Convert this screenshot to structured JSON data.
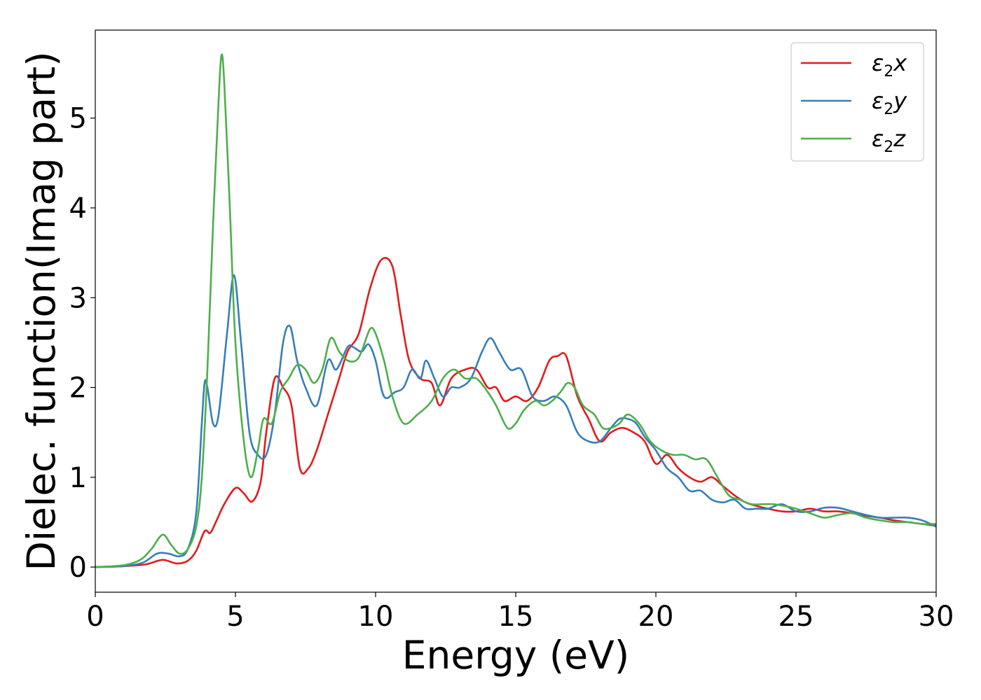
{
  "chart_data": {
    "type": "line",
    "xlabel": "Energy (eV)",
    "ylabel": "Dielec. function(Imag part)",
    "xlim": [
      0,
      30
    ],
    "ylim": [
      -0.28,
      5.98
    ],
    "xticks": [
      0,
      5,
      10,
      15,
      20,
      25,
      30
    ],
    "yticks": [
      0,
      1,
      2,
      3,
      4,
      5
    ],
    "xtick_labels": [
      "0",
      "5",
      "10",
      "15",
      "20",
      "25",
      "30"
    ],
    "ytick_labels": [
      "0",
      "1",
      "2",
      "3",
      "4",
      "5"
    ],
    "legend_position": "top-right",
    "grid": false,
    "series": [
      {
        "name": "ε₂x",
        "legend_base": "ε",
        "legend_sub": "2",
        "legend_suffix": "x",
        "color": "#e41a1c",
        "x": [
          0,
          1,
          1.8,
          2.4,
          2.9,
          3.3,
          3.6,
          3.9,
          4.1,
          4.3,
          4.6,
          5.0,
          5.3,
          5.6,
          5.9,
          6.1,
          6.4,
          6.7,
          7.0,
          7.3,
          7.6,
          7.9,
          8.3,
          8.7,
          9.0,
          9.4,
          9.8,
          10.2,
          10.6,
          10.9,
          11.2,
          11.6,
          12.0,
          12.3,
          12.7,
          13.2,
          13.6,
          14.0,
          14.3,
          14.6,
          15.0,
          15.4,
          15.8,
          16.2,
          16.5,
          16.8,
          17.2,
          17.6,
          18.0,
          18.4,
          18.8,
          19.2,
          19.6,
          20.0,
          20.4,
          20.8,
          21.2,
          21.6,
          22.0,
          22.4,
          22.8,
          23.2,
          23.6,
          24.0,
          24.5,
          25.0,
          25.5,
          26.0,
          26.5,
          27.0,
          27.5,
          28.0,
          28.5,
          29.0,
          29.5,
          30.0
        ],
        "values": [
          0,
          0.01,
          0.03,
          0.08,
          0.04,
          0.07,
          0.18,
          0.4,
          0.38,
          0.5,
          0.7,
          0.88,
          0.82,
          0.73,
          0.95,
          1.5,
          2.1,
          2.0,
          1.8,
          1.1,
          1.1,
          1.3,
          1.7,
          2.1,
          2.4,
          2.6,
          3.1,
          3.42,
          3.35,
          2.8,
          2.3,
          2.1,
          2.05,
          1.8,
          2.1,
          2.2,
          2.2,
          2.0,
          2.0,
          1.85,
          1.9,
          1.85,
          2.0,
          2.3,
          2.35,
          2.35,
          1.9,
          1.65,
          1.4,
          1.5,
          1.55,
          1.5,
          1.4,
          1.15,
          1.25,
          1.1,
          1.0,
          0.95,
          1.0,
          0.9,
          0.8,
          0.72,
          0.68,
          0.65,
          0.62,
          0.62,
          0.65,
          0.62,
          0.62,
          0.6,
          0.57,
          0.55,
          0.52,
          0.5,
          0.48,
          0.46
        ]
      },
      {
        "name": "ε₂y",
        "legend_base": "ε",
        "legend_sub": "2",
        "legend_suffix": "y",
        "color": "#377eb8",
        "x": [
          0,
          1,
          1.7,
          2.2,
          2.6,
          3.0,
          3.3,
          3.6,
          3.8,
          3.9,
          4.0,
          4.2,
          4.4,
          4.7,
          4.95,
          5.2,
          5.5,
          5.8,
          6.1,
          6.4,
          6.7,
          6.95,
          7.2,
          7.5,
          7.9,
          8.3,
          8.6,
          9.0,
          9.2,
          9.5,
          9.75,
          10.0,
          10.3,
          10.7,
          11.0,
          11.3,
          11.6,
          11.8,
          12.1,
          12.4,
          12.7,
          13.0,
          13.4,
          13.8,
          14.1,
          14.4,
          14.8,
          15.2,
          15.6,
          16.0,
          16.4,
          16.8,
          17.2,
          17.6,
          18.0,
          18.4,
          18.7,
          19.0,
          19.3,
          19.6,
          20.0,
          20.4,
          20.8,
          21.2,
          21.6,
          22.0,
          22.4,
          22.8,
          23.2,
          23.6,
          24.0,
          24.5,
          25.0,
          25.5,
          26.0,
          26.5,
          27.0,
          27.5,
          28.0,
          28.5,
          29.0,
          29.5,
          30.0
        ],
        "values": [
          0,
          0.01,
          0.05,
          0.15,
          0.15,
          0.12,
          0.2,
          0.6,
          1.6,
          2.05,
          2.0,
          1.6,
          1.7,
          2.6,
          3.25,
          2.5,
          1.5,
          1.25,
          1.25,
          1.7,
          2.5,
          2.68,
          2.3,
          2.0,
          1.8,
          2.3,
          2.2,
          2.45,
          2.45,
          2.4,
          2.48,
          2.3,
          1.9,
          1.95,
          2.0,
          2.2,
          2.1,
          2.3,
          2.1,
          1.9,
          2.0,
          2.0,
          2.1,
          2.4,
          2.55,
          2.4,
          2.2,
          2.2,
          1.9,
          1.85,
          1.9,
          1.8,
          1.5,
          1.4,
          1.4,
          1.55,
          1.65,
          1.65,
          1.6,
          1.45,
          1.3,
          1.1,
          1.0,
          0.85,
          0.85,
          0.75,
          0.72,
          0.75,
          0.65,
          0.65,
          0.65,
          0.7,
          0.62,
          0.62,
          0.66,
          0.66,
          0.62,
          0.58,
          0.55,
          0.55,
          0.55,
          0.52,
          0.45
        ]
      },
      {
        "name": "ε₂z",
        "legend_base": "ε",
        "legend_sub": "2",
        "legend_suffix": "z",
        "color": "#4daf4a",
        "x": [
          0,
          1,
          1.6,
          2.0,
          2.4,
          2.7,
          3.0,
          3.3,
          3.6,
          3.8,
          4.0,
          4.2,
          4.4,
          4.5,
          4.6,
          4.8,
          5.0,
          5.3,
          5.55,
          5.8,
          6.0,
          6.3,
          6.6,
          6.9,
          7.2,
          7.5,
          7.8,
          8.1,
          8.4,
          8.7,
          9.0,
          9.3,
          9.5,
          9.8,
          10.0,
          10.3,
          10.6,
          11.0,
          11.5,
          12.0,
          12.4,
          12.8,
          13.2,
          13.6,
          14.0,
          14.3,
          14.7,
          15.0,
          15.3,
          15.7,
          16.0,
          16.3,
          16.6,
          16.85,
          17.1,
          17.4,
          17.8,
          18.1,
          18.4,
          18.7,
          19.0,
          19.4,
          19.8,
          20.2,
          20.6,
          21.0,
          21.4,
          21.8,
          22.2,
          22.6,
          23.0,
          23.4,
          23.8,
          24.2,
          24.6,
          25.0,
          25.5,
          26.0,
          26.5,
          27.0,
          27.5,
          28.0,
          28.5,
          29.0,
          29.5,
          30.0
        ],
        "values": [
          0,
          0.02,
          0.08,
          0.2,
          0.36,
          0.25,
          0.15,
          0.2,
          0.45,
          1.0,
          2.2,
          3.8,
          5.2,
          5.7,
          5.4,
          4.0,
          2.5,
          1.4,
          1.0,
          1.3,
          1.65,
          1.6,
          1.95,
          2.1,
          2.25,
          2.2,
          2.05,
          2.2,
          2.55,
          2.4,
          2.3,
          2.3,
          2.4,
          2.65,
          2.6,
          2.3,
          1.9,
          1.6,
          1.7,
          1.85,
          2.1,
          2.2,
          2.1,
          2.1,
          1.95,
          1.8,
          1.55,
          1.6,
          1.75,
          1.85,
          1.8,
          1.85,
          1.95,
          2.05,
          2.0,
          1.8,
          1.7,
          1.55,
          1.55,
          1.6,
          1.7,
          1.6,
          1.4,
          1.3,
          1.25,
          1.25,
          1.2,
          1.2,
          1.0,
          0.8,
          0.75,
          0.7,
          0.7,
          0.7,
          0.68,
          0.65,
          0.6,
          0.55,
          0.58,
          0.6,
          0.55,
          0.52,
          0.5,
          0.5,
          0.48,
          0.48
        ]
      }
    ]
  }
}
